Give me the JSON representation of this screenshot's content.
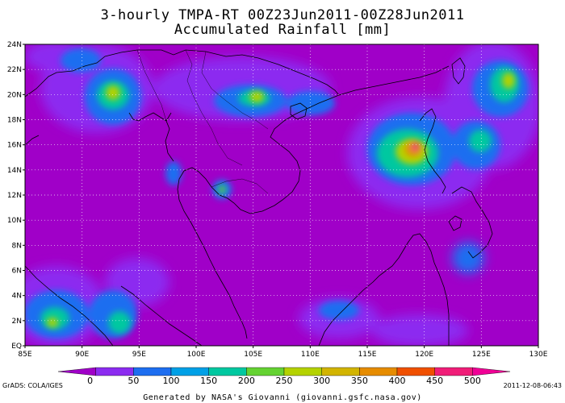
{
  "title_line1": "3-hourly TMPA-RT 00Z23Jun2011-00Z28Jun2011",
  "title_line2": "Accumulated Rainfall [mm]",
  "lat_ticks": [
    "EQ",
    "2N",
    "4N",
    "6N",
    "8N",
    "10N",
    "12N",
    "14N",
    "16N",
    "18N",
    "20N",
    "22N",
    "24N"
  ],
  "lon_ticks": [
    "85E",
    "90E",
    "95E",
    "100E",
    "105E",
    "110E",
    "115E",
    "120E",
    "125E",
    "130E"
  ],
  "legend": {
    "values": [
      "0",
      "50",
      "100",
      "150",
      "200",
      "250",
      "300",
      "350",
      "400",
      "450",
      "500"
    ],
    "colors": [
      "#a000c8",
      "#8c2cf0",
      "#1e6ef0",
      "#00a0e6",
      "#00c8a0",
      "#64d232",
      "#b4d200",
      "#d2b400",
      "#e68c00",
      "#f05000",
      "#f01e78",
      "#f00096"
    ]
  },
  "grads_label": "GrADS: COLA/IGES",
  "date_label": "2011-12-08-06:43",
  "footer": "Generated by NASA's Giovanni (giovanni.gsfc.nasa.gov)",
  "chart_data": {
    "type": "heatmap",
    "xlim": [
      85,
      130
    ],
    "ylim": [
      0,
      24
    ],
    "units": "mm",
    "max_rainfall_location": [
      119.5,
      15.8
    ]
  }
}
